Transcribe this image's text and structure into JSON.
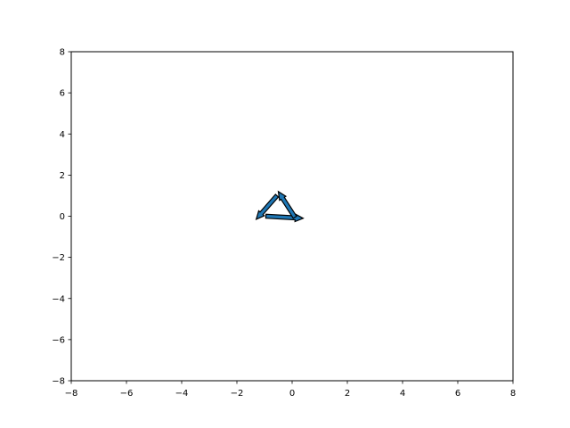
{
  "chart_data": {
    "type": "quiver",
    "title": "",
    "xlabel": "",
    "ylabel": "",
    "xlim": [
      -8,
      8
    ],
    "ylim": [
      -8,
      8
    ],
    "xticks": [
      -8,
      -6,
      -4,
      -2,
      0,
      2,
      4,
      6,
      8
    ],
    "xtick_labels": [
      "−8",
      "−6",
      "−4",
      "−2",
      "0",
      "2",
      "4",
      "6",
      "8"
    ],
    "yticks": [
      -8,
      -6,
      -4,
      -2,
      0,
      2,
      4,
      6,
      8
    ],
    "ytick_labels": [
      "−8",
      "−6",
      "−4",
      "−2",
      "0",
      "2",
      "4",
      "6",
      "8"
    ],
    "grid": false,
    "arrow_color": "#1f77b4",
    "arrow_edge_color": "#000000",
    "arrows": [
      {
        "x": -0.95,
        "y": 0.0,
        "dx": 1.35,
        "dy": -0.1
      },
      {
        "x": 0.1,
        "y": -0.05,
        "dx": -0.6,
        "dy": 1.25
      },
      {
        "x": -0.55,
        "y": 1.0,
        "dx": -0.75,
        "dy": -1.15
      }
    ]
  }
}
